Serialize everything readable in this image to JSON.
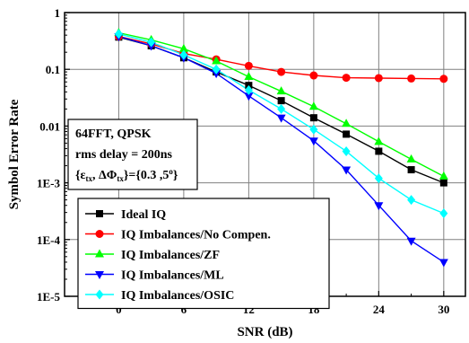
{
  "chart_data": {
    "type": "line",
    "xlabel": "SNR (dB)",
    "ylabel": "Symbol Error Rate",
    "x": [
      0,
      3,
      6,
      9,
      12,
      15,
      18,
      21,
      24,
      27,
      30
    ],
    "x_ticks": [
      0,
      6,
      12,
      18,
      24,
      30
    ],
    "x_tick_labels": [
      "0",
      "6",
      "12",
      "18",
      "24",
      "30"
    ],
    "xlim": [
      -5,
      32
    ],
    "y_scale": "log",
    "ylim": [
      1e-05,
      1
    ],
    "y_ticks": [
      1,
      0.1,
      0.01,
      0.001,
      0.0001,
      1e-05
    ],
    "y_tick_labels": [
      "1",
      "0.1",
      "0.01",
      "1E-3",
      "1E-4",
      "1E-5"
    ],
    "grid": true,
    "legend_position": "bottom-left",
    "series": [
      {
        "name": "Ideal IQ",
        "color": "#000000",
        "marker": "square",
        "values": [
          0.37,
          0.26,
          0.16,
          0.09,
          0.052,
          0.028,
          0.014,
          0.0072,
          0.0036,
          0.0017,
          0.001
        ]
      },
      {
        "name": "IQ Imbalances/No Compen.",
        "color": "#ff0000",
        "marker": "circle",
        "values": [
          0.38,
          0.28,
          0.19,
          0.15,
          0.115,
          0.09,
          0.078,
          0.071,
          0.07,
          0.069,
          0.068
        ]
      },
      {
        "name": "IQ Imbalances/ZF",
        "color": "#00ff00",
        "marker": "triangle-up",
        "values": [
          0.44,
          0.33,
          0.23,
          0.14,
          0.074,
          0.041,
          0.022,
          0.011,
          0.0053,
          0.0026,
          0.0013
        ]
      },
      {
        "name": "IQ Imbalances/ML",
        "color": "#0000ff",
        "marker": "triangle-down",
        "values": [
          0.38,
          0.26,
          0.16,
          0.085,
          0.034,
          0.014,
          0.0055,
          0.0017,
          0.0004,
          9.5e-05,
          4e-05
        ]
      },
      {
        "name": "IQ Imbalances/OSIC",
        "color": "#00ffff",
        "marker": "diamond",
        "values": [
          0.42,
          0.3,
          0.18,
          0.1,
          0.043,
          0.02,
          0.0087,
          0.0036,
          0.0012,
          0.0005,
          0.00029
        ]
      }
    ],
    "annotation": {
      "line1": "64FFT, QPSK",
      "line2": "rms delay = 200ns",
      "line3_prefix": "{ε",
      "line3_sub1": "tx",
      "line3_mid": ", ΔΦ",
      "line3_sub2": "tx",
      "line3_eq": "}={0.3 ,5",
      "line3_sup": "o",
      "line3_end": "}"
    }
  }
}
